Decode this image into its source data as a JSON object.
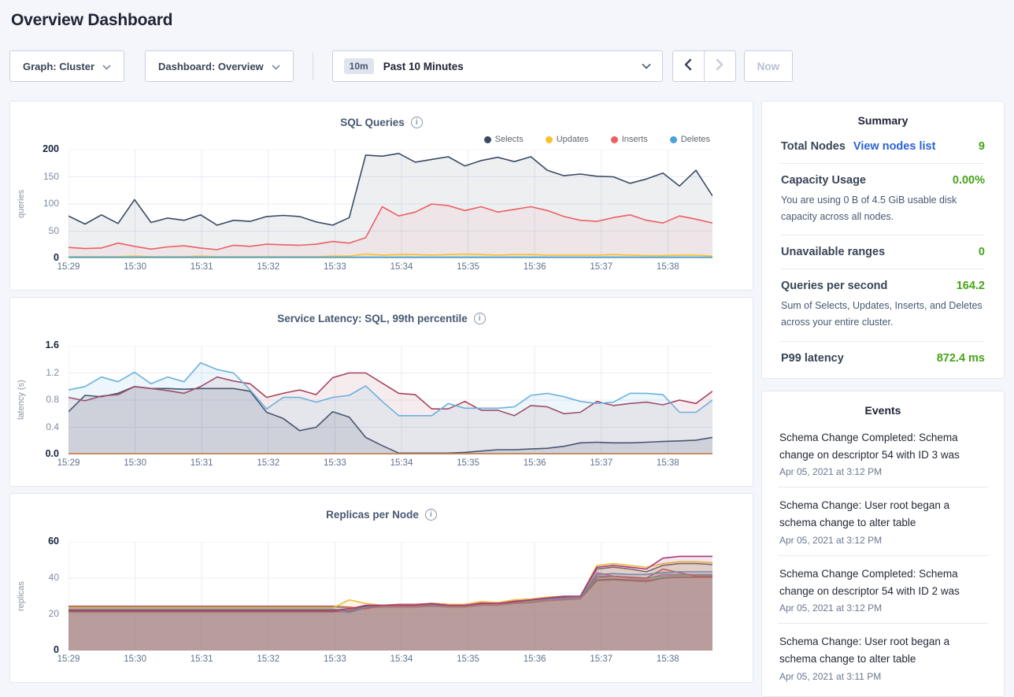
{
  "page": {
    "title": "Overview Dashboard"
  },
  "toolbar": {
    "graph_label": "Graph: Cluster",
    "dashboard_label": "Dashboard: Overview",
    "time_badge": "10m",
    "time_label": "Past 10 Minutes",
    "now_label": "Now"
  },
  "colors": {
    "accent_green": "#46a417",
    "link_blue": "#2a63d5",
    "title_slate": "#475872"
  },
  "chart_data": [
    {
      "type": "area",
      "title": "SQL Queries",
      "ylabel": "queries",
      "ylim": [
        0,
        200
      ],
      "yticks": [
        "0",
        "50",
        "100",
        "150",
        "200"
      ],
      "x_tick_labels": [
        "15:29",
        "15:30",
        "15:31",
        "15:32",
        "15:33",
        "15:34",
        "15:35",
        "15:36",
        "15:37",
        "15:38"
      ],
      "x_span_minutes": 9.67,
      "grid": true,
      "legend_position": "top-right",
      "legend": [
        "Selects",
        "Updates",
        "Inserts",
        "Deletes"
      ],
      "series": [
        {
          "name": "Selects",
          "color": "#3b4a63",
          "fill_opacity": 0.09,
          "values": [
            78,
            63,
            80,
            64,
            108,
            66,
            74,
            70,
            80,
            61,
            70,
            68,
            77,
            79,
            77,
            67,
            61,
            75,
            190,
            188,
            193,
            177,
            182,
            187,
            170,
            180,
            186,
            178,
            187,
            162,
            152,
            155,
            151,
            150,
            138,
            146,
            157,
            133,
            162,
            115
          ]
        },
        {
          "name": "Inserts",
          "color": "#ed5f64",
          "fill_opacity": 0.07,
          "values": [
            20,
            18,
            19,
            28,
            22,
            17,
            21,
            23,
            19,
            16,
            24,
            22,
            26,
            25,
            24,
            26,
            31,
            28,
            38,
            95,
            78,
            85,
            100,
            97,
            88,
            95,
            85,
            90,
            95,
            88,
            77,
            70,
            68,
            75,
            80,
            70,
            65,
            78,
            72,
            65
          ]
        },
        {
          "name": "Updates",
          "color": "#fdc12b",
          "fill_opacity": 0.12,
          "values": [
            3,
            3,
            3,
            3,
            4,
            3,
            3,
            3,
            4,
            3,
            3,
            3,
            3,
            3,
            3,
            3,
            4,
            4,
            8,
            6,
            7,
            7,
            6,
            7,
            8,
            7,
            6,
            7,
            7,
            6,
            6,
            6,
            6,
            7,
            6,
            5,
            5,
            6,
            6,
            4
          ]
        },
        {
          "name": "Deletes",
          "color": "#47a3db",
          "fill_opacity": 0.25,
          "values": [
            2,
            2,
            2,
            2,
            2,
            2,
            2,
            2,
            2,
            2,
            2,
            2,
            2,
            2,
            2,
            2,
            2,
            2,
            2,
            2,
            2,
            2,
            2,
            2,
            2,
            2,
            2,
            2,
            2,
            2,
            2,
            2,
            2,
            2,
            2,
            2,
            2,
            2,
            2,
            2
          ]
        }
      ]
    },
    {
      "type": "area",
      "title": "Service Latency: SQL, 99th percentile",
      "ylabel": "latency (s)",
      "ylim": [
        0,
        1.6
      ],
      "yticks": [
        "0.0",
        "0.4",
        "0.8",
        "1.2",
        "1.6"
      ],
      "x_tick_labels": [
        "15:29",
        "15:30",
        "15:31",
        "15:32",
        "15:33",
        "15:34",
        "15:35",
        "15:36",
        "15:37",
        "15:38"
      ],
      "x_span_minutes": 9.67,
      "grid": true,
      "series": [
        {
          "name": "latency-navy",
          "color": "#3b4a63",
          "fill_opacity": 0.14,
          "values": [
            0.63,
            0.87,
            0.85,
            0.9,
            1.0,
            0.97,
            0.97,
            0.96,
            0.97,
            0.97,
            0.97,
            0.93,
            0.62,
            0.53,
            0.35,
            0.4,
            0.63,
            0.55,
            0.25,
            0.13,
            0.02,
            0.02,
            0.02,
            0.02,
            0.03,
            0.05,
            0.07,
            0.07,
            0.08,
            0.09,
            0.12,
            0.17,
            0.18,
            0.17,
            0.17,
            0.18,
            0.19,
            0.2,
            0.21,
            0.25
          ]
        },
        {
          "name": "latency-maroon",
          "color": "#a6425c",
          "fill_opacity": 0.1,
          "values": [
            0.84,
            0.79,
            0.86,
            0.88,
            1.0,
            0.97,
            0.94,
            0.9,
            1.0,
            1.14,
            1.08,
            1.04,
            0.84,
            0.9,
            0.95,
            0.88,
            1.13,
            1.2,
            1.2,
            1.05,
            0.9,
            0.88,
            0.67,
            0.67,
            0.78,
            0.65,
            0.65,
            0.57,
            0.72,
            0.7,
            0.6,
            0.62,
            0.78,
            0.72,
            0.75,
            0.77,
            0.73,
            0.8,
            0.75,
            0.93
          ]
        },
        {
          "name": "latency-blue",
          "color": "#6cb1de",
          "fill_opacity": 0.12,
          "values": [
            0.95,
            1.0,
            1.14,
            1.07,
            1.21,
            1.04,
            1.14,
            1.07,
            1.35,
            1.25,
            1.2,
            0.95,
            0.67,
            0.84,
            0.84,
            0.77,
            0.84,
            0.87,
            1.01,
            0.78,
            0.57,
            0.57,
            0.57,
            0.75,
            0.68,
            0.68,
            0.68,
            0.7,
            0.87,
            0.9,
            0.85,
            0.78,
            0.75,
            0.77,
            0.9,
            0.9,
            0.88,
            0.62,
            0.62,
            0.8
          ]
        },
        {
          "name": "latency-orange",
          "color": "#c77e45",
          "fill_opacity": 0,
          "values": [
            0.01,
            0.01,
            0.01,
            0.01,
            0.01,
            0.01,
            0.01,
            0.01,
            0.01,
            0.01,
            0.01,
            0.01,
            0.01,
            0.01,
            0.01,
            0.01,
            0.01,
            0.01,
            0.01,
            0.01,
            0.01,
            0.01,
            0.01,
            0.01,
            0.01,
            0.01,
            0.01,
            0.01,
            0.01,
            0.01,
            0.01,
            0.01,
            0.01,
            0.01,
            0.01,
            0.01,
            0.01,
            0.01,
            0.01,
            0.01
          ]
        }
      ]
    },
    {
      "type": "area",
      "title": "Replicas per Node",
      "ylabel": "replicas",
      "ylim": [
        0,
        60
      ],
      "yticks": [
        "0",
        "20",
        "40",
        "60"
      ],
      "x_tick_labels": [
        "15:29",
        "15:30",
        "15:31",
        "15:32",
        "15:33",
        "15:34",
        "15:35",
        "15:36",
        "15:37",
        "15:38"
      ],
      "x_span_minutes": 9.67,
      "grid": true,
      "series": [
        {
          "name": "n9",
          "color": "#bd8b54",
          "fill_opacity": 0.13,
          "values": [
            21.2,
            21.2,
            21.2,
            21.2,
            21.2,
            21.2,
            21.2,
            21.2,
            21.2,
            21.2,
            21.2,
            21.2,
            21.2,
            21.2,
            21.2,
            21.2,
            21.2,
            21.5,
            23.5,
            24,
            24,
            24,
            24.5,
            24,
            24,
            25,
            25,
            26,
            26.5,
            27.5,
            28,
            28.5,
            38.5,
            39,
            38.5,
            38,
            40,
            40.5,
            40.5,
            40.5
          ]
        },
        {
          "name": "n8",
          "color": "#9e4a4e",
          "fill_opacity": 0.13,
          "values": [
            21.6,
            21.6,
            21.6,
            21.6,
            21.6,
            21.6,
            21.6,
            21.6,
            21.6,
            21.6,
            21.6,
            21.6,
            21.6,
            21.6,
            21.6,
            21.6,
            21.6,
            22,
            24,
            24.5,
            24.5,
            24.5,
            25,
            24.5,
            24.5,
            25.5,
            25.5,
            26.5,
            27,
            28,
            28.5,
            29,
            39,
            39.5,
            39,
            38.5,
            40,
            40.5,
            40.5,
            40.5
          ]
        },
        {
          "name": "n7",
          "color": "#d86fae",
          "fill_opacity": 0.13,
          "values": [
            22.7,
            22.7,
            22.7,
            22.7,
            22.7,
            22.7,
            22.7,
            22.7,
            22.7,
            22.7,
            22.7,
            22.7,
            22.7,
            22.7,
            22.7,
            22.7,
            22.7,
            21,
            23.5,
            24.5,
            24.5,
            24.5,
            25,
            24.5,
            24.5,
            25.5,
            25.5,
            26.5,
            27,
            28,
            28.5,
            29,
            43,
            41,
            40,
            39.5,
            42,
            42,
            42,
            42
          ]
        },
        {
          "name": "n6",
          "color": "#58bd8c",
          "fill_opacity": 0.13,
          "values": [
            24,
            24,
            24,
            24,
            24,
            24,
            24,
            24,
            24,
            24,
            24,
            24,
            24,
            24,
            24,
            24,
            24,
            23.5,
            24,
            25,
            25,
            25,
            26,
            25.5,
            25.5,
            26.5,
            26,
            27,
            27.5,
            28.5,
            29,
            29.5,
            40,
            41,
            40.5,
            40,
            41,
            41.5,
            41.5,
            41.5
          ]
        },
        {
          "name": "n5",
          "color": "#cc5a5e",
          "fill_opacity": 0.13,
          "values": [
            24.5,
            24.5,
            24.5,
            24.5,
            24.5,
            24.5,
            24.5,
            24.5,
            24.5,
            24.5,
            24.5,
            24.5,
            24.5,
            24.5,
            24.5,
            24.5,
            24.5,
            24,
            23,
            25,
            25.5,
            25.5,
            26,
            25.5,
            25.5,
            26.5,
            26.5,
            27.5,
            28,
            29,
            29.5,
            30,
            41,
            41,
            40.5,
            40,
            45,
            43,
            41,
            41
          ]
        },
        {
          "name": "n4",
          "color": "#5b93cc",
          "fill_opacity": 0.13,
          "values": [
            23,
            23,
            23,
            23,
            23,
            23,
            23,
            23,
            23,
            23,
            23,
            23,
            23,
            23,
            23,
            23,
            23,
            21,
            24,
            25,
            25,
            25,
            25.5,
            25,
            25,
            26,
            26,
            27,
            28,
            28.5,
            29,
            29.5,
            42,
            42.5,
            42,
            42,
            43,
            43.5,
            43.5,
            43.5
          ]
        },
        {
          "name": "n3",
          "color": "#606670",
          "fill_opacity": 0.13,
          "values": [
            22,
            22,
            22,
            22,
            22,
            22,
            22,
            22,
            22,
            22,
            22,
            22,
            22,
            22,
            22,
            22,
            22,
            23,
            24.5,
            25,
            25,
            25,
            25.5,
            25,
            25,
            26,
            26,
            27,
            28,
            29,
            29.5,
            30,
            45,
            46,
            45,
            43.5,
            47,
            48,
            48,
            47.5
          ]
        },
        {
          "name": "n2",
          "color": "#edbc40",
          "fill_opacity": 0.13,
          "values": [
            23.5,
            23.5,
            23.5,
            23.5,
            23.5,
            23.5,
            23.5,
            23.5,
            23.5,
            23.5,
            23.5,
            23.5,
            23.5,
            23.5,
            23.5,
            23.5,
            23.5,
            28,
            26,
            25,
            25,
            25,
            26,
            25.5,
            25.5,
            27,
            26.5,
            28,
            28.5,
            29.5,
            30,
            30,
            47,
            48,
            47,
            46,
            48,
            49,
            49,
            48.5
          ]
        },
        {
          "name": "n1",
          "color": "#a83a7a",
          "fill_opacity": 0.13,
          "values": [
            22.2,
            22.2,
            22.2,
            22.2,
            22.2,
            22.2,
            22.2,
            22.2,
            22.2,
            22.2,
            22.2,
            22.2,
            22.2,
            22.2,
            22.2,
            22.2,
            22.2,
            23,
            25,
            25,
            25,
            25,
            26,
            25,
            25,
            26,
            26,
            27,
            28,
            29,
            30,
            30,
            46,
            47,
            46,
            45,
            51,
            52,
            52,
            52
          ]
        }
      ]
    }
  ],
  "summary": {
    "title": "Summary",
    "total_nodes": {
      "label": "Total Nodes",
      "link": "View nodes list",
      "value": "9"
    },
    "capacity": {
      "label": "Capacity Usage",
      "value": "0.00%",
      "desc": "You are using 0 B of 4.5 GiB usable disk capacity across all nodes."
    },
    "unavailable": {
      "label": "Unavailable ranges",
      "value": "0"
    },
    "qps": {
      "label": "Queries per second",
      "value": "164.2",
      "desc": "Sum of Selects, Updates, Inserts, and Deletes across your entire cluster."
    },
    "p99": {
      "label": "P99 latency",
      "value": "872.4 ms"
    }
  },
  "events": {
    "title": "Events",
    "items": [
      {
        "text": "Schema Change Completed: Schema change on descriptor 54 with ID 3 was",
        "time": "Apr 05, 2021 at 3:12 PM"
      },
      {
        "text": "Schema Change: User root began a schema change to alter table",
        "time": "Apr 05, 2021 at 3:12 PM"
      },
      {
        "text": "Schema Change Completed: Schema change on descriptor 54 with ID 2 was",
        "time": "Apr 05, 2021 at 3:12 PM"
      },
      {
        "text": "Schema Change: User root began a schema change to alter table",
        "time": "Apr 05, 2021 at 3:11 PM"
      }
    ]
  }
}
